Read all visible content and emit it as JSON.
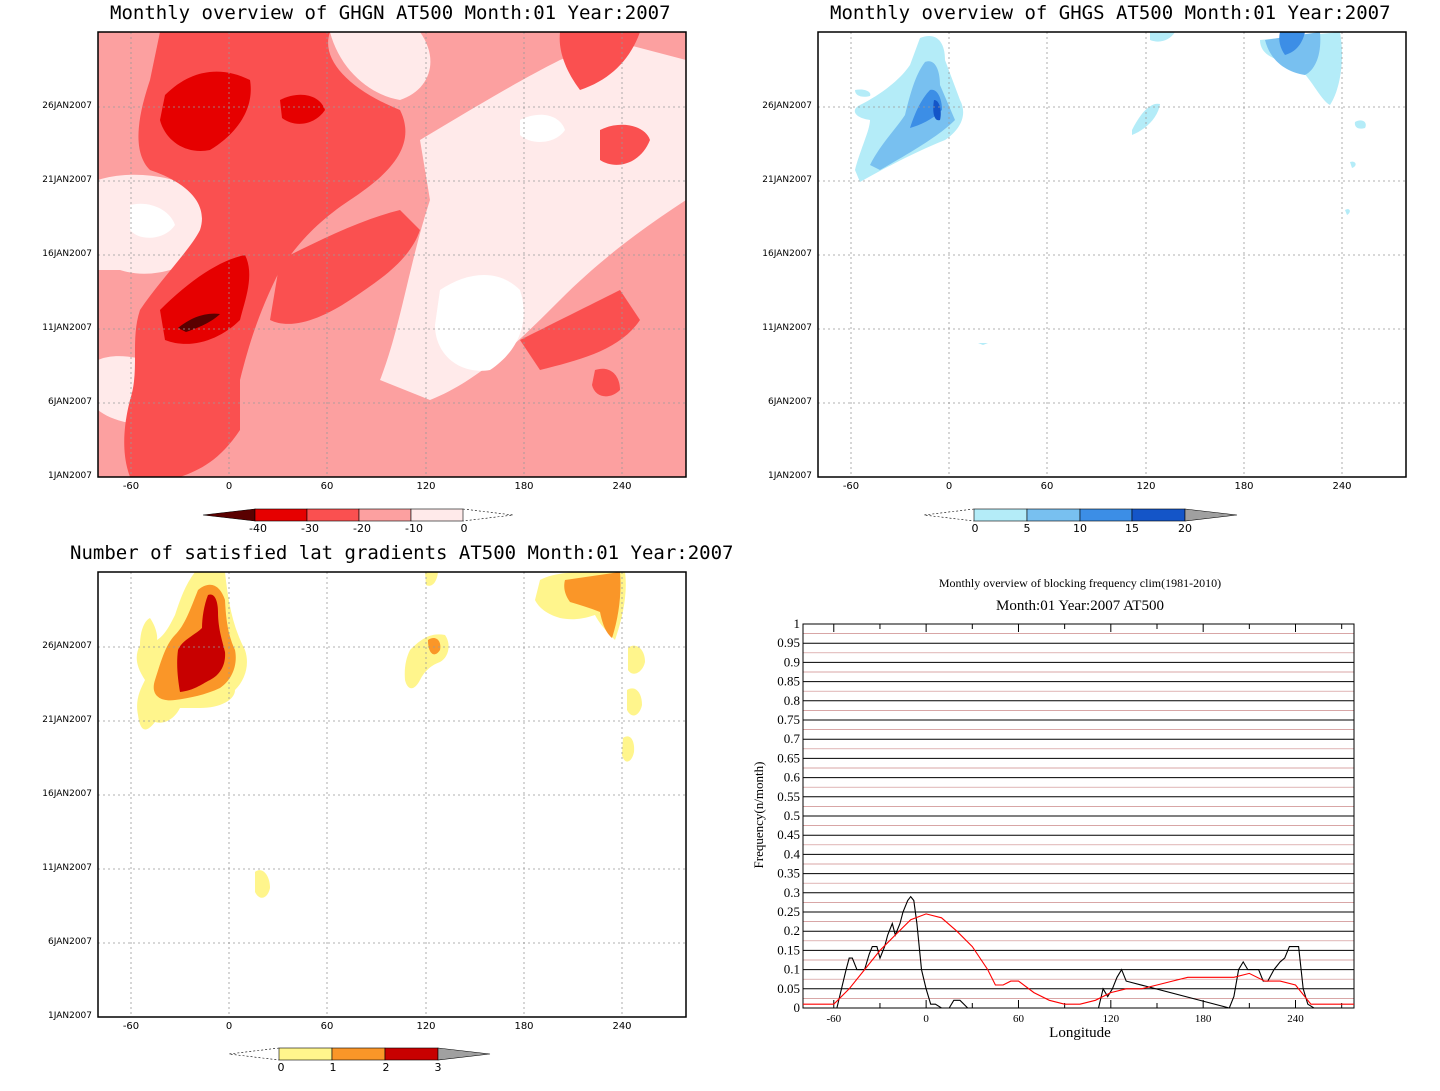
{
  "charts": {
    "ghgn": {
      "title": "Monthly overview of GHGN AT500 Month:01 Year:2007",
      "colorbar_labels": [
        "-40",
        "-30",
        "-20",
        "-10",
        "0"
      ],
      "colorbar_colors": [
        "#5a0000",
        "#e60000",
        "#fa5050",
        "#fca0a0",
        "#ffeaea"
      ]
    },
    "ghgs": {
      "title": "Monthly overview of GHGS AT500 Month:01 Year:2007",
      "colorbar_labels": [
        "0",
        "5",
        "10",
        "15",
        "20"
      ],
      "colorbar_colors": [
        "#b4ecf8",
        "#78c0f0",
        "#3c8ee6",
        "#1455c8",
        "#a0a0a0"
      ]
    },
    "lat": {
      "title": "Number of satisfied lat gradients AT500 Month:01 Year:2007",
      "colorbar_labels": [
        "0",
        "1",
        "2",
        "3"
      ],
      "colorbar_colors": [
        "#fff58c",
        "#fa9628",
        "#c80000",
        "#a0a0a0"
      ]
    },
    "freq": {
      "title": "Monthly overview of blocking frequency clim(1981-2010)",
      "subtitle": "Month:01 Year:2007  AT500",
      "xlabel": "Longitude",
      "ylabel": "Frequency(n/month)",
      "y_ticks": [
        "1",
        "0.95",
        "0.9",
        "0.85",
        "0.8",
        "0.75",
        "0.7",
        "0.65",
        "0.6",
        "0.55",
        "0.5",
        "0.45",
        "0.4",
        "0.35",
        "0.3",
        "0.25",
        "0.2",
        "0.15",
        "0.1",
        "0.05",
        "0"
      ],
      "x_ticks": [
        "-60",
        "0",
        "60",
        "120",
        "180",
        "240"
      ]
    },
    "shared": {
      "y_ticks": [
        "26JAN2007",
        "21JAN2007",
        "16JAN2007",
        "11JAN2007",
        "6JAN2007",
        "1JAN2007"
      ],
      "x_ticks": [
        "-60",
        "0",
        "60",
        "120",
        "180",
        "240"
      ]
    }
  },
  "chart_data": [
    {
      "type": "heatmap",
      "title": "Monthly overview of GHGN AT500 Month:01 Year:2007",
      "x_ticks": [
        -60,
        0,
        60,
        120,
        180,
        240
      ],
      "y_ticks": [
        "26JAN2007",
        "21JAN2007",
        "16JAN2007",
        "11JAN2007",
        "6JAN2007",
        "1JAN2007"
      ],
      "legend_levels": [
        -40,
        -30,
        -20,
        -10,
        0
      ]
    },
    {
      "type": "heatmap",
      "title": "Monthly overview of GHGS AT500 Month:01 Year:2007",
      "x_ticks": [
        -60,
        0,
        60,
        120,
        180,
        240
      ],
      "y_ticks": [
        "26JAN2007",
        "21JAN2007",
        "16JAN2007",
        "11JAN2007",
        "6JAN2007",
        "1JAN2007"
      ],
      "legend_levels": [
        0,
        5,
        10,
        15,
        20
      ]
    },
    {
      "type": "heatmap",
      "title": "Number of satisfied lat gradients AT500 Month:01 Year:2007",
      "x_ticks": [
        -60,
        0,
        60,
        120,
        180,
        240
      ],
      "y_ticks": [
        "26JAN2007",
        "21JAN2007",
        "16JAN2007",
        "11JAN2007",
        "6JAN2007",
        "1JAN2007"
      ],
      "legend_levels": [
        0,
        1,
        2,
        3
      ]
    },
    {
      "type": "line",
      "title": "Monthly overview of blocking frequency clim(1981-2010)",
      "xlabel": "Longitude",
      "ylabel": "Frequency(n/month)",
      "xlim": [
        -80,
        278
      ],
      "ylim": [
        0,
        1
      ],
      "series": [
        {
          "color": "#000000",
          "x": [
            -80,
            -58,
            -55,
            -52,
            -50,
            -48,
            -45,
            -40,
            -37,
            -35,
            -32,
            -30,
            -27,
            -25,
            -22,
            -20,
            -17,
            -15,
            -12,
            -10,
            -8,
            -6,
            -3,
            0,
            3,
            6,
            10,
            15,
            18,
            22,
            27,
            30,
            112,
            115,
            118,
            121,
            124,
            127,
            130,
            197,
            200,
            203,
            206,
            209,
            212,
            216,
            219,
            222,
            226,
            230,
            233,
            236,
            242,
            245,
            248,
            252,
            278
          ],
          "y": [
            0,
            0,
            0.05,
            0.1,
            0.13,
            0.13,
            0.1,
            0.1,
            0.14,
            0.16,
            0.16,
            0.13,
            0.16,
            0.19,
            0.22,
            0.19,
            0.22,
            0.25,
            0.28,
            0.29,
            0.28,
            0.22,
            0.1,
            0.05,
            0.01,
            0.01,
            0,
            0,
            0.02,
            0.02,
            0,
            0,
            0,
            0.05,
            0.03,
            0.05,
            0.08,
            0.1,
            0.07,
            0,
            0.03,
            0.1,
            0.12,
            0.1,
            0.1,
            0.1,
            0.07,
            0.07,
            0.1,
            0.12,
            0.13,
            0.16,
            0.16,
            0.05,
            0.01,
            0,
            0
          ]
        },
        {
          "color": "#ff0000",
          "x": [
            -80,
            -60,
            -50,
            -40,
            -30,
            -20,
            -10,
            0,
            10,
            20,
            30,
            40,
            45,
            50,
            55,
            60,
            70,
            80,
            90,
            100,
            110,
            120,
            130,
            140,
            150,
            160,
            170,
            180,
            190,
            200,
            210,
            220,
            230,
            240,
            250,
            260,
            278
          ],
          "y": [
            0.01,
            0.01,
            0.05,
            0.1,
            0.15,
            0.19,
            0.23,
            0.245,
            0.235,
            0.2,
            0.16,
            0.1,
            0.06,
            0.06,
            0.07,
            0.07,
            0.04,
            0.02,
            0.01,
            0.01,
            0.02,
            0.04,
            0.05,
            0.05,
            0.06,
            0.07,
            0.08,
            0.08,
            0.08,
            0.08,
            0.09,
            0.07,
            0.07,
            0.06,
            0.01,
            0.01,
            0.01
          ]
        }
      ]
    }
  ]
}
